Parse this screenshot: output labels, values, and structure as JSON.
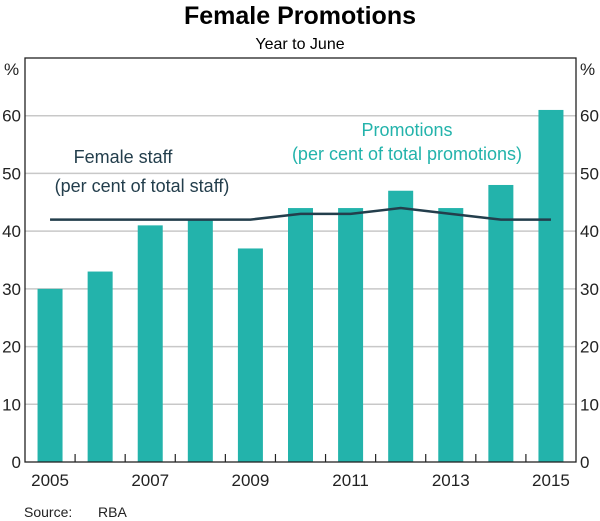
{
  "chart_data": {
    "type": "bar",
    "title": "Female Promotions",
    "subtitle": "Year to June",
    "ylabel_left": "%",
    "ylabel_right": "%",
    "ylim": [
      0,
      70
    ],
    "yticks": [
      0,
      10,
      20,
      30,
      40,
      50,
      60
    ],
    "grid": true,
    "categories": [
      "2005",
      "2006",
      "2007",
      "2008",
      "2009",
      "2010",
      "2011",
      "2012",
      "2013",
      "2014",
      "2015"
    ],
    "xtick_labels": [
      "2005",
      "2007",
      "2009",
      "2011",
      "2013",
      "2015"
    ],
    "series": [
      {
        "name": "Promotions",
        "annotation": [
          "Promotions",
          "(per cent of total promotions)"
        ],
        "type": "bar",
        "color": "#23b3ab",
        "values": [
          30,
          33,
          41,
          42,
          37,
          44,
          44,
          47,
          44,
          48,
          61
        ]
      },
      {
        "name": "Female staff",
        "annotation": [
          "Female staff",
          "(per cent of total staff)"
        ],
        "type": "line",
        "color": "#233e4c",
        "values": [
          42,
          42,
          42,
          42,
          42,
          43,
          43,
          44,
          43,
          42,
          42
        ]
      }
    ],
    "source_label": "Source:",
    "source": "RBA"
  }
}
